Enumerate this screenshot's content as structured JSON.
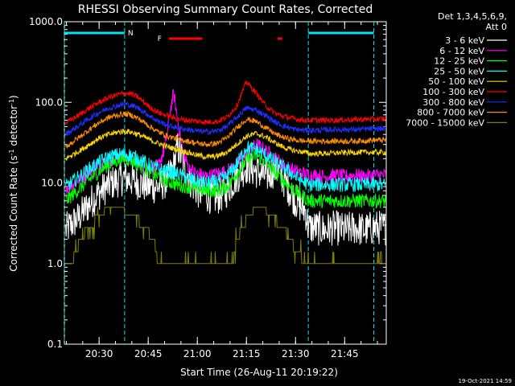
{
  "chart_data": {
    "type": "line",
    "title": "RHESSI Observing Summary Count Rates, Corrected",
    "xlabel": "Start Time (26-Aug-11 20:19:22)",
    "ylabel": "Corrected Count Rate (s⁻¹ detector⁻¹)",
    "ylabel_parts": [
      "Corrected Count Rate (s",
      "-1",
      " detector",
      "-1",
      ")"
    ],
    "y_scale": "log",
    "xlim": [
      20.3233,
      21.9617
    ],
    "ylim": [
      0.1,
      1000
    ],
    "x_tick_labels": [
      "20:30",
      "20:45",
      "21:00",
      "21:15",
      "21:30",
      "21:45"
    ],
    "x_tick_values": [
      20.5,
      20.75,
      21.0,
      21.25,
      21.5,
      21.75
    ],
    "y_tick_labels": [
      "0.1",
      "1.0",
      "10.0",
      "100.0",
      "1000.0"
    ],
    "y_tick_values": [
      0.1,
      1,
      10,
      100,
      1000
    ],
    "legend_title": [
      "Det 1,3,4,5,6,9,",
      "Att 0"
    ],
    "legend_position": "right-outside",
    "footer": "19-Oct-2021 14:59",
    "bars": [
      {
        "label": "N",
        "color": "#00e5ee",
        "intervals": [
          [
            20.3233,
            20.63
          ],
          [
            21.565,
            21.8983
          ]
        ]
      },
      {
        "label": "F",
        "color": "#ff0000",
        "intervals": [
          [
            20.855,
            21.025
          ],
          [
            21.408,
            21.432
          ]
        ]
      }
    ],
    "flag_markers": [
      {
        "x": 20.3233,
        "color": "#00e5ee"
      },
      {
        "x": 20.63,
        "color": "#00e5ee"
      },
      {
        "x": 21.565,
        "color": "#00e5ee"
      },
      {
        "x": 21.8983,
        "color": "#00e5ee"
      }
    ],
    "series": [
      {
        "name": "3 - 6 keV",
        "color": "#ffffff",
        "x": [
          20.33,
          20.4,
          20.45,
          20.5,
          20.55,
          20.6,
          20.63,
          20.66,
          20.7,
          20.75,
          20.8,
          20.85,
          20.88,
          20.9,
          20.93,
          20.96,
          21.0,
          21.05,
          21.1,
          21.15,
          21.2,
          21.25,
          21.3,
          21.35,
          21.4,
          21.45,
          21.5,
          21.55,
          21.565,
          21.6,
          21.65,
          21.7,
          21.75,
          21.8,
          21.85,
          21.9,
          21.96
        ],
        "y": [
          2.6,
          3.8,
          5.5,
          7.5,
          9.5,
          11.0,
          11.5,
          11.0,
          10.0,
          9.0,
          9.0,
          11.0,
          16.0,
          28.0,
          18.0,
          11.0,
          8.0,
          7.0,
          6.5,
          8.0,
          12.0,
          16.0,
          14.0,
          12.0,
          15.0,
          10.0,
          6.0,
          4.5,
          2.8,
          2.8,
          2.6,
          2.8,
          2.6,
          2.8,
          2.6,
          2.8,
          2.8
        ]
      },
      {
        "name": "6 - 12 keV",
        "color": "#ff00ff",
        "x": [
          20.33,
          20.4,
          20.45,
          20.5,
          20.55,
          20.6,
          20.63,
          20.66,
          20.7,
          20.75,
          20.8,
          20.83,
          20.85,
          20.86,
          20.88,
          20.9,
          20.93,
          20.96,
          21.0,
          21.05,
          21.1,
          21.15,
          21.2,
          21.25,
          21.3,
          21.35,
          21.4,
          21.45,
          21.5,
          21.55,
          21.565,
          21.6,
          21.65,
          21.7,
          21.75,
          21.8,
          21.85,
          21.9,
          21.96
        ],
        "y": [
          8.5,
          11.0,
          14.0,
          17.0,
          19.0,
          21.0,
          21.0,
          20.0,
          18.0,
          15.0,
          16.0,
          25.0,
          45.0,
          75.0,
          130.0,
          60.0,
          22.0,
          15.0,
          13.0,
          12.0,
          13.0,
          14.0,
          17.0,
          23.0,
          30.0,
          25.0,
          20.0,
          16.0,
          14.0,
          13.0,
          12.5,
          12.5,
          12.0,
          12.5,
          12.0,
          12.5,
          12.0,
          12.5,
          12.5
        ]
      },
      {
        "name": "12 - 25 keV",
        "color": "#00ff00",
        "x": [
          20.33,
          20.4,
          20.45,
          20.5,
          20.55,
          20.6,
          20.63,
          20.66,
          20.7,
          20.75,
          20.8,
          20.85,
          20.9,
          20.95,
          21.0,
          21.05,
          21.1,
          21.15,
          21.2,
          21.25,
          21.3,
          21.35,
          21.4,
          21.45,
          21.5,
          21.55,
          21.565,
          21.6,
          21.7,
          21.8,
          21.9,
          21.96
        ],
        "y": [
          6.0,
          8.5,
          11.0,
          14.0,
          17.0,
          19.5,
          20.0,
          19.5,
          17.0,
          14.0,
          12.0,
          10.5,
          9.5,
          9.0,
          8.5,
          8.0,
          8.0,
          9.0,
          13.0,
          19.0,
          22.0,
          18.0,
          13.0,
          10.0,
          8.0,
          6.5,
          6.0,
          6.0,
          6.0,
          6.0,
          6.0,
          6.0
        ]
      },
      {
        "name": "25 - 50 keV",
        "color": "#00ffff",
        "x": [
          20.33,
          20.4,
          20.45,
          20.5,
          20.55,
          20.6,
          20.63,
          20.66,
          20.7,
          20.75,
          20.8,
          20.85,
          20.9,
          20.95,
          21.0,
          21.05,
          21.1,
          21.15,
          21.2,
          21.25,
          21.3,
          21.35,
          21.4,
          21.45,
          21.5,
          21.55,
          21.565,
          21.6,
          21.7,
          21.8,
          21.9,
          21.96
        ],
        "y": [
          9.0,
          12.0,
          15.0,
          18.0,
          21.0,
          22.5,
          23.0,
          22.0,
          20.0,
          17.0,
          15.0,
          14.0,
          13.0,
          11.5,
          10.5,
          10.0,
          10.5,
          12.0,
          17.0,
          28.0,
          26.0,
          22.0,
          18.0,
          15.0,
          12.0,
          10.0,
          9.5,
          9.5,
          9.5,
          9.5,
          9.5,
          9.5
        ]
      },
      {
        "name": "50 - 100 keV",
        "color": "#ffd700",
        "x": [
          20.33,
          20.4,
          20.45,
          20.5,
          20.55,
          20.6,
          20.63,
          20.66,
          20.7,
          20.75,
          20.8,
          20.85,
          20.9,
          20.95,
          21.0,
          21.05,
          21.1,
          21.15,
          21.2,
          21.25,
          21.3,
          21.35,
          21.4,
          21.45,
          21.5,
          21.55,
          21.565,
          21.6,
          21.7,
          21.8,
          21.9,
          21.96
        ],
        "y": [
          20.0,
          25.0,
          30.0,
          36.0,
          40.0,
          43.0,
          44.0,
          43.0,
          40.0,
          35.0,
          31.0,
          28.0,
          26.0,
          24.0,
          22.0,
          21.0,
          21.5,
          24.0,
          30.0,
          38.0,
          41.0,
          37.0,
          31.0,
          27.0,
          25.0,
          24.0,
          23.0,
          23.0,
          23.5,
          24.0,
          24.0,
          24.0
        ]
      },
      {
        "name": "100 - 300 keV",
        "color": "#ff0000",
        "x": [
          20.33,
          20.4,
          20.45,
          20.5,
          20.55,
          20.6,
          20.63,
          20.66,
          20.7,
          20.75,
          20.8,
          20.85,
          20.9,
          20.95,
          21.0,
          21.05,
          21.1,
          21.15,
          21.2,
          21.25,
          21.3,
          21.35,
          21.4,
          21.45,
          21.5,
          21.55,
          21.565,
          21.6,
          21.7,
          21.8,
          21.9,
          21.96
        ],
        "y": [
          55.0,
          70.0,
          85.0,
          100.0,
          115.0,
          125.0,
          130.0,
          128.0,
          115.0,
          90.0,
          75.0,
          68.0,
          62.0,
          60.0,
          58.0,
          57.0,
          58.0,
          65.0,
          90.0,
          180.0,
          130.0,
          90.0,
          72.0,
          66.0,
          62.0,
          60.0,
          60.0,
          60.0,
          60.0,
          61.0,
          62.0,
          62.0
        ]
      },
      {
        "name": "300 - 800 keV",
        "color": "#1f2fff",
        "x": [
          20.33,
          20.4,
          20.45,
          20.5,
          20.55,
          20.6,
          20.63,
          20.66,
          20.7,
          20.75,
          20.8,
          20.85,
          20.9,
          20.95,
          21.0,
          21.05,
          21.1,
          21.15,
          21.2,
          21.25,
          21.3,
          21.35,
          21.4,
          21.45,
          21.5,
          21.55,
          21.565,
          21.6,
          21.7,
          21.8,
          21.9,
          21.96
        ],
        "y": [
          40.0,
          52.0,
          63.0,
          75.0,
          85.0,
          92.0,
          95.0,
          92.0,
          85.0,
          70.0,
          58.0,
          52.0,
          48.0,
          46.0,
          44.0,
          43.0,
          44.0,
          50.0,
          65.0,
          85.0,
          80.0,
          68.0,
          56.0,
          50.0,
          46.0,
          45.0,
          45.0,
          45.0,
          46.0,
          46.0,
          47.0,
          47.0
        ]
      },
      {
        "name": "800 - 7000 keV",
        "color": "#ff8c00",
        "x": [
          20.33,
          20.4,
          20.45,
          20.5,
          20.55,
          20.6,
          20.63,
          20.66,
          20.7,
          20.75,
          20.8,
          20.85,
          20.9,
          20.95,
          21.0,
          21.05,
          21.1,
          21.15,
          21.2,
          21.25,
          21.3,
          21.35,
          21.4,
          21.45,
          21.5,
          21.55,
          21.565,
          21.6,
          21.7,
          21.8,
          21.9,
          21.96
        ],
        "y": [
          28.0,
          37.0,
          46.0,
          56.0,
          65.0,
          70.0,
          72.0,
          70.0,
          63.0,
          52.0,
          43.0,
          38.0,
          35.0,
          33.0,
          31.0,
          30.0,
          31.0,
          36.0,
          48.0,
          62.0,
          58.0,
          48.0,
          40.0,
          36.0,
          34.0,
          33.0,
          33.0,
          33.0,
          33.0,
          33.0,
          34.0,
          34.0
        ]
      },
      {
        "name": "7000 - 15000 keV",
        "color": "#808000",
        "x": [
          20.33,
          20.36,
          20.4,
          20.45,
          20.5,
          20.55,
          20.6,
          20.63,
          20.66,
          20.7,
          20.75,
          20.78,
          20.8,
          20.85,
          20.9,
          21.0,
          21.1,
          21.15,
          21.18,
          21.2,
          21.25,
          21.3,
          21.35,
          21.4,
          21.45,
          21.5,
          21.55,
          21.565,
          21.7,
          21.8,
          21.9,
          21.96
        ],
        "y": [
          1.0,
          1.0,
          2.0,
          2.8,
          4.0,
          5.0,
          5.0,
          4.5,
          4.0,
          3.5,
          2.5,
          2.0,
          1.0,
          1.0,
          1.0,
          1.0,
          1.0,
          1.0,
          1.0,
          2.0,
          3.5,
          5.0,
          4.5,
          3.5,
          2.5,
          1.5,
          1.0,
          1.0,
          1.0,
          1.0,
          1.0,
          1.0
        ]
      }
    ]
  }
}
